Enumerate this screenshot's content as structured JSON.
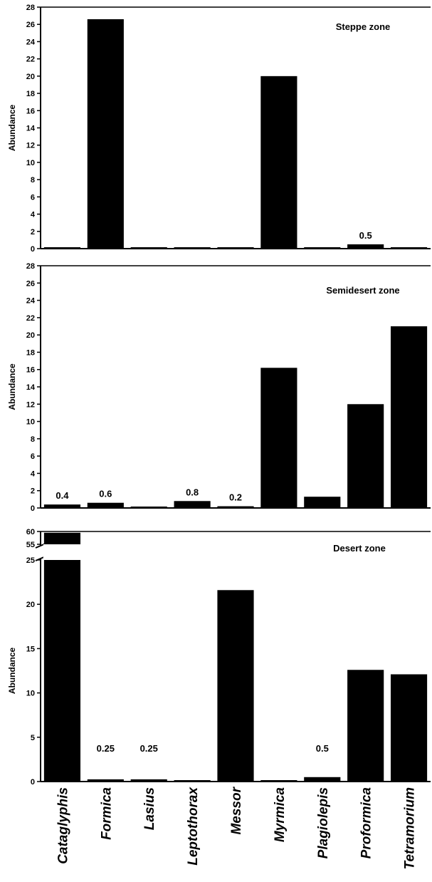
{
  "chart_data": {
    "type": "bar",
    "categories": [
      "Cataglyphis",
      "Formica",
      "Lasius",
      "Leptothorax",
      "Messor",
      "Myrmica",
      "Plagiolepis",
      "Proformica",
      "Tetramorium"
    ],
    "bar_color": "#000000",
    "panels": [
      {
        "id": "steppe",
        "title": "Steppe zone",
        "ylabel": "Abundance",
        "ylim": [
          0,
          28
        ],
        "yticks": [
          0,
          2,
          4,
          6,
          8,
          10,
          12,
          14,
          16,
          18,
          20,
          22,
          24,
          26,
          28
        ],
        "values": [
          0,
          26.6,
          0,
          0,
          0,
          20,
          0,
          0.5,
          0
        ],
        "data_labels": [
          "",
          "",
          "",
          "",
          "",
          "",
          "",
          "0.5",
          ""
        ]
      },
      {
        "id": "semidesert",
        "title": "Semidesert zone",
        "ylabel": "Abundance",
        "ylim": [
          0,
          28
        ],
        "yticks": [
          0,
          2,
          4,
          6,
          8,
          10,
          12,
          14,
          16,
          18,
          20,
          22,
          24,
          26,
          28
        ],
        "values": [
          0.4,
          0.6,
          0,
          0.8,
          0.2,
          16.2,
          1.3,
          12,
          21
        ],
        "data_labels": [
          "0.4",
          "0.6",
          "",
          "0.8",
          "0.2",
          "",
          "",
          "",
          ""
        ]
      },
      {
        "id": "desert",
        "title": "Desert zone",
        "ylabel": "Abundance",
        "ylim": [
          0,
          25
        ],
        "yticks": [
          0,
          5,
          10,
          15,
          20,
          25
        ],
        "axis_break": {
          "upper_ticks": [
            55,
            60
          ],
          "upper_range": [
            55,
            60
          ]
        },
        "values": [
          59.5,
          0.25,
          0.25,
          0,
          21.6,
          0,
          0.5,
          12.6,
          12.1
        ],
        "data_labels": [
          "",
          "0.25",
          "0.25",
          "",
          "",
          "",
          "0.5",
          "",
          ""
        ]
      }
    ]
  }
}
